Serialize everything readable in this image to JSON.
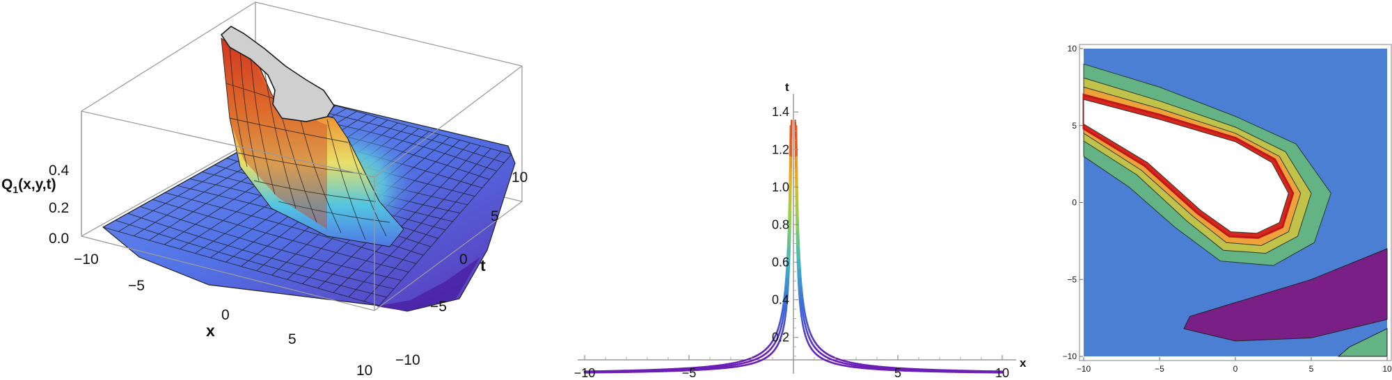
{
  "chart_data": [
    {
      "type": "surface",
      "zlabel": "Q1(x,y,t)",
      "zlabel_main": "Q",
      "zlabel_sub": "1",
      "zlabel_rest": "(x,y,t)",
      "xlabel": "x",
      "ylabel": "t",
      "x_ticks": [
        "−10",
        "−5",
        "0",
        "5",
        "10"
      ],
      "t_ticks": [
        "10",
        "5",
        "0",
        "−5",
        "−10"
      ],
      "z_ticks": [
        "0.4",
        "0.2",
        "0.0"
      ],
      "xlim": [
        -10,
        10
      ],
      "tlim": [
        -10,
        10
      ],
      "zlim": [
        0,
        0.5
      ],
      "colormap": [
        "#3b1f8f",
        "#5b3ec9",
        "#4f78e6",
        "#53c6e0",
        "#e8e06a",
        "#f08b2c",
        "#d92a1c"
      ],
      "cap_color": "#cfcfcf",
      "mesh_color": "#1a1a1a"
    },
    {
      "type": "line",
      "xlabel": "x",
      "ylabel": "t",
      "xlim": [
        -10,
        10
      ],
      "ylim": [
        0.08,
        1.46
      ],
      "x_ticks": [
        "−10",
        "−5",
        "5",
        "10"
      ],
      "y_ticks": [
        "0.2",
        "0.4",
        "0.6",
        "0.8",
        "1.0",
        "1.2",
        "1.4"
      ],
      "series": [
        {
          "c": 0.12,
          "sides": "both"
        },
        {
          "c": 0.15,
          "sides": "both"
        },
        {
          "c": 0.18,
          "sides": "both"
        }
      ],
      "colormap": [
        "#6a1fb5",
        "#3d63d8",
        "#3fb2c8",
        "#8fd14f",
        "#f2b01e",
        "#e0361b"
      ]
    },
    {
      "type": "contour",
      "xlim": [
        -10,
        10
      ],
      "ylim": [
        -10,
        10
      ],
      "x_ticks": [
        "−10",
        "−5",
        "0",
        "5",
        "10"
      ],
      "y_ticks": [
        "10",
        "5",
        "0",
        "−5",
        "−10"
      ],
      "background_color": "#4a7fd4",
      "levels_colors": [
        "#63b384",
        "#c1c24a",
        "#efa23a",
        "#d7261e",
        "#ffffff"
      ],
      "low_region_color": "#7a1f85",
      "corner_color": "#63b384"
    }
  ]
}
